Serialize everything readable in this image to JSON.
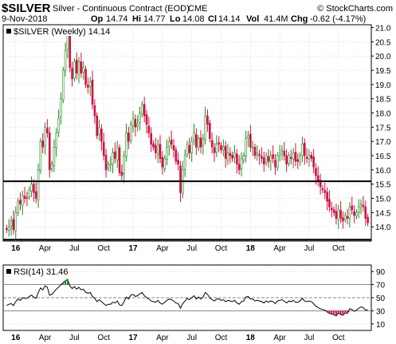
{
  "header": {
    "symbol": "$SILVER",
    "name": "Silver - Continuous Contract (EOD)",
    "exchange": "CME",
    "date": "9-Nov-2018",
    "open_label": "Op",
    "open": "14.74",
    "high_label": "Hi",
    "high": "14.77",
    "low_label": "Lo",
    "low": "14.08",
    "close_label": "Cl",
    "close": "14.14",
    "volume_label": "Vol",
    "volume": "41.4M",
    "change_label": "Chg",
    "change": "-0.62 (-4.17%)",
    "watermark": "© StockCharts.com"
  },
  "legend": {
    "price": "$SILVER (Weekly) 14.14",
    "rsi": "RSI(14) 31.46"
  },
  "colors": {
    "up": "#1e8c1e",
    "down": "#d01040",
    "rsi_line": "#000000",
    "hline": "#000000",
    "grid": "#c8c8c8"
  },
  "chart_data": [
    {
      "type": "candlestick",
      "title": "$SILVER (Weekly) 14.14",
      "interval": "weekly",
      "x_tick_labels": [
        "16",
        "Apr",
        "Jul",
        "Oct",
        "17",
        "Apr",
        "Jul",
        "Oct",
        "18",
        "Apr",
        "Jul",
        "Oct"
      ],
      "y_tick_labels": [
        "21.0",
        "20.5",
        "20.0",
        "19.5",
        "19.0",
        "18.5",
        "18.0",
        "17.5",
        "17.0",
        "16.5",
        "16.0",
        "15.5",
        "15.0",
        "14.5",
        "14.0"
      ],
      "ylim": [
        13.5,
        21.1
      ],
      "horizontal_lines": [
        15.6,
        13.55
      ],
      "grid": true,
      "legend": "top-left",
      "close_values": [
        13.9,
        14.0,
        14.2,
        13.9,
        14.5,
        14.9,
        14.8,
        15.1,
        15.0,
        15.0,
        15.3,
        15.5,
        15.2,
        15.0,
        16.0,
        17.0,
        16.8,
        17.5,
        17.3,
        16.0,
        16.2,
        16.8,
        17.3,
        17.8,
        18.5,
        19.5,
        20.2,
        20.8,
        19.6,
        19.2,
        19.8,
        19.4,
        19.8,
        19.4,
        19.6,
        19.0,
        18.9,
        19.1,
        18.3,
        17.9,
        17.2,
        17.5,
        17.0,
        16.5,
        16.0,
        16.2,
        16.2,
        16.6,
        16.4,
        16.8,
        15.9,
        15.8,
        16.5,
        17.3,
        17.0,
        17.6,
        17.8,
        17.5,
        17.6,
        18.0,
        18.3,
        17.9,
        17.6,
        17.3,
        16.9,
        16.8,
        16.6,
        16.9,
        16.4,
        16.1,
        16.4,
        16.8,
        17.0,
        16.9,
        16.7,
        16.3,
        16.2,
        15.2,
        16.0,
        16.5,
        16.9,
        16.6,
        17.0,
        17.3,
        16.8,
        17.1,
        16.8,
        17.1,
        17.9,
        17.6,
        17.1,
        16.8,
        16.6,
        16.9,
        16.9,
        16.7,
        16.8,
        16.4,
        16.6,
        16.5,
        16.4,
        16.6,
        16.2,
        16.0,
        16.4,
        16.5,
        17.1,
        17.2,
        16.8,
        16.8,
        16.5,
        16.6,
        16.5,
        16.4,
        16.2,
        16.5,
        16.3,
        16.5,
        16.4,
        16.1,
        16.5,
        16.6,
        16.7,
        16.5,
        16.2,
        16.5,
        16.4,
        16.6,
        16.3,
        16.3,
        16.5,
        16.9,
        16.5,
        16.4,
        16.5,
        16.4,
        16.1,
        15.8,
        15.6,
        15.4,
        15.3,
        15.2,
        14.9,
        14.7,
        14.6,
        14.5,
        14.3,
        14.6,
        14.3,
        14.2,
        14.4,
        14.3,
        14.7,
        14.6,
        14.4,
        14.5,
        14.7,
        14.8,
        14.7,
        14.3,
        14.14
      ]
    },
    {
      "type": "line",
      "title": "RSI(14) 31.46",
      "y_tick_labels": [
        "90",
        "70",
        "50",
        "30",
        "10"
      ],
      "ylim": [
        0,
        100
      ],
      "reference_lines": [
        70,
        50,
        30
      ],
      "values": [
        38,
        40,
        41,
        38,
        44,
        48,
        46,
        50,
        49,
        49,
        52,
        54,
        51,
        49,
        58,
        65,
        62,
        68,
        66,
        54,
        55,
        59,
        63,
        66,
        70,
        73,
        76,
        78,
        68,
        64,
        67,
        63,
        66,
        62,
        63,
        58,
        57,
        58,
        52,
        49,
        44,
        47,
        44,
        41,
        38,
        40,
        40,
        43,
        42,
        45,
        39,
        38,
        44,
        51,
        48,
        54,
        55,
        52,
        53,
        56,
        58,
        53,
        50,
        48,
        45,
        44,
        43,
        46,
        42,
        40,
        43,
        46,
        48,
        47,
        45,
        42,
        41,
        34,
        41,
        45,
        49,
        47,
        50,
        53,
        48,
        51,
        48,
        51,
        58,
        55,
        50,
        47,
        45,
        48,
        48,
        46,
        47,
        44,
        46,
        45,
        44,
        46,
        42,
        40,
        44,
        45,
        51,
        52,
        48,
        48,
        45,
        46,
        45,
        44,
        42,
        45,
        43,
        45,
        44,
        41,
        45,
        46,
        47,
        45,
        42,
        45,
        44,
        46,
        43,
        43,
        45,
        49,
        45,
        44,
        45,
        44,
        41,
        37,
        35,
        33,
        32,
        31,
        28,
        26,
        25,
        24,
        22,
        27,
        24,
        23,
        27,
        26,
        33,
        32,
        29,
        31,
        34,
        36,
        35,
        31,
        31.46
      ]
    }
  ]
}
